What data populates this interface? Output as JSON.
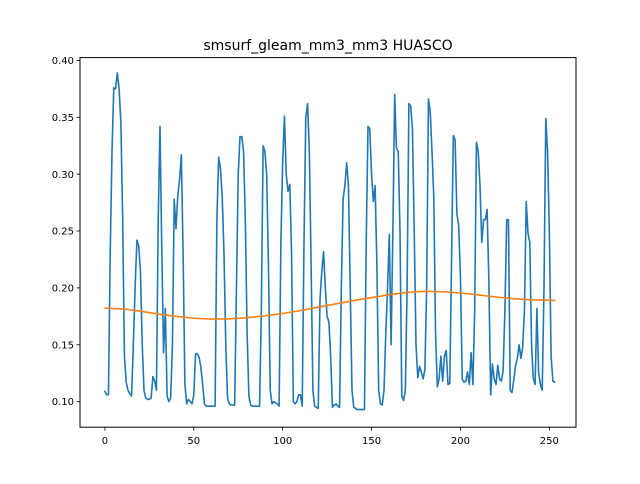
{
  "chart_data": {
    "type": "line",
    "title": "smsurf_gleam_mm3_mm3 HUASCO",
    "xlabel": "",
    "ylabel": "",
    "xlim": [
      -14,
      265
    ],
    "ylim": [
      0.0775,
      0.4025
    ],
    "x_ticks": [
      0,
      50,
      100,
      150,
      200,
      250
    ],
    "x_tick_labels": [
      "0",
      "50",
      "100",
      "150",
      "200",
      "250"
    ],
    "y_ticks": [
      0.1,
      0.15,
      0.2,
      0.25,
      0.3,
      0.35,
      0.4
    ],
    "y_tick_labels": [
      "0.10",
      "0.15",
      "0.20",
      "0.25",
      "0.30",
      "0.35",
      "0.40"
    ],
    "grid": false,
    "series": [
      {
        "color": "#1f77b4",
        "points": [
          [
            0,
            0.109
          ],
          [
            1,
            0.106
          ],
          [
            2,
            0.106
          ],
          [
            3,
            0.23
          ],
          [
            4,
            0.32
          ],
          [
            5,
            0.376
          ],
          [
            6,
            0.375
          ],
          [
            7,
            0.389
          ],
          [
            8,
            0.375
          ],
          [
            9,
            0.345
          ],
          [
            10,
            0.26
          ],
          [
            11,
            0.14
          ],
          [
            12,
            0.117
          ],
          [
            13,
            0.11
          ],
          [
            14,
            0.107
          ],
          [
            15,
            0.105
          ],
          [
            16,
            0.15
          ],
          [
            17,
            0.2
          ],
          [
            18,
            0.242
          ],
          [
            19,
            0.237
          ],
          [
            20,
            0.215
          ],
          [
            21,
            0.15
          ],
          [
            22,
            0.11
          ],
          [
            23,
            0.103
          ],
          [
            24,
            0.102
          ],
          [
            25,
            0.102
          ],
          [
            26,
            0.103
          ],
          [
            27,
            0.122
          ],
          [
            28,
            0.118
          ],
          [
            29,
            0.11
          ],
          [
            30,
            0.26
          ],
          [
            31,
            0.342
          ],
          [
            32,
            0.233
          ],
          [
            33,
            0.143
          ],
          [
            34,
            0.182
          ],
          [
            35,
            0.105
          ],
          [
            36,
            0.1
          ],
          [
            37,
            0.103
          ],
          [
            38,
            0.15
          ],
          [
            39,
            0.278
          ],
          [
            40,
            0.252
          ],
          [
            41,
            0.281
          ],
          [
            42,
            0.295
          ],
          [
            43,
            0.317
          ],
          [
            44,
            0.23
          ],
          [
            45,
            0.115
          ],
          [
            46,
            0.098
          ],
          [
            47,
            0.102
          ],
          [
            48,
            0.1
          ],
          [
            49,
            0.098
          ],
          [
            50,
            0.106
          ],
          [
            51,
            0.142
          ],
          [
            52,
            0.142
          ],
          [
            53,
            0.139
          ],
          [
            54,
            0.13
          ],
          [
            55,
            0.115
          ],
          [
            56,
            0.098
          ],
          [
            57,
            0.096
          ],
          [
            58,
            0.096
          ],
          [
            59,
            0.096
          ],
          [
            60,
            0.096
          ],
          [
            61,
            0.096
          ],
          [
            62,
            0.096
          ],
          [
            63,
            0.26
          ],
          [
            64,
            0.315
          ],
          [
            65,
            0.305
          ],
          [
            66,
            0.28
          ],
          [
            67,
            0.23
          ],
          [
            68,
            0.15
          ],
          [
            69,
            0.103
          ],
          [
            70,
            0.098
          ],
          [
            71,
            0.097
          ],
          [
            72,
            0.097
          ],
          [
            73,
            0.097
          ],
          [
            74,
            0.2
          ],
          [
            75,
            0.3
          ],
          [
            76,
            0.333
          ],
          [
            77,
            0.333
          ],
          [
            78,
            0.32
          ],
          [
            79,
            0.26
          ],
          [
            80,
            0.16
          ],
          [
            81,
            0.105
          ],
          [
            82,
            0.097
          ],
          [
            83,
            0.096
          ],
          [
            84,
            0.096
          ],
          [
            85,
            0.096
          ],
          [
            86,
            0.096
          ],
          [
            87,
            0.096
          ],
          [
            88,
            0.18
          ],
          [
            89,
            0.325
          ],
          [
            90,
            0.32
          ],
          [
            91,
            0.3
          ],
          [
            92,
            0.22
          ],
          [
            93,
            0.11
          ],
          [
            94,
            0.098
          ],
          [
            95,
            0.1
          ],
          [
            96,
            0.099
          ],
          [
            97,
            0.098
          ],
          [
            98,
            0.096
          ],
          [
            99,
            0.24
          ],
          [
            100,
            0.31
          ],
          [
            101,
            0.351
          ],
          [
            102,
            0.3
          ],
          [
            103,
            0.285
          ],
          [
            104,
            0.291
          ],
          [
            105,
            0.23
          ],
          [
            106,
            0.1
          ],
          [
            107,
            0.098
          ],
          [
            108,
            0.1
          ],
          [
            109,
            0.106
          ],
          [
            110,
            0.106
          ],
          [
            111,
            0.096
          ],
          [
            112,
            0.24
          ],
          [
            113,
            0.35
          ],
          [
            114,
            0.362
          ],
          [
            115,
            0.32
          ],
          [
            116,
            0.22
          ],
          [
            117,
            0.11
          ],
          [
            118,
            0.096
          ],
          [
            119,
            0.095
          ],
          [
            120,
            0.094
          ],
          [
            121,
            0.19
          ],
          [
            122,
            0.214
          ],
          [
            123,
            0.232
          ],
          [
            124,
            0.2
          ],
          [
            125,
            0.175
          ],
          [
            126,
            0.17
          ],
          [
            127,
            0.14
          ],
          [
            128,
            0.095
          ],
          [
            129,
            0.097
          ],
          [
            130,
            0.098
          ],
          [
            131,
            0.096
          ],
          [
            132,
            0.095
          ],
          [
            133,
            0.2
          ],
          [
            134,
            0.278
          ],
          [
            135,
            0.29
          ],
          [
            136,
            0.31
          ],
          [
            137,
            0.29
          ],
          [
            138,
            0.2
          ],
          [
            139,
            0.11
          ],
          [
            140,
            0.095
          ],
          [
            141,
            0.094
          ],
          [
            142,
            0.093
          ],
          [
            143,
            0.093
          ],
          [
            144,
            0.093
          ],
          [
            145,
            0.093
          ],
          [
            146,
            0.093
          ],
          [
            147,
            0.24
          ],
          [
            148,
            0.342
          ],
          [
            149,
            0.34
          ],
          [
            150,
            0.3
          ],
          [
            151,
            0.276
          ],
          [
            152,
            0.29
          ],
          [
            153,
            0.22
          ],
          [
            154,
            0.11
          ],
          [
            155,
            0.098
          ],
          [
            156,
            0.097
          ],
          [
            157,
            0.11
          ],
          [
            158,
            0.16
          ],
          [
            159,
            0.2
          ],
          [
            160,
            0.247
          ],
          [
            161,
            0.15
          ],
          [
            162,
            0.25
          ],
          [
            163,
            0.37
          ],
          [
            164,
            0.323
          ],
          [
            165,
            0.32
          ],
          [
            166,
            0.25
          ],
          [
            167,
            0.105
          ],
          [
            168,
            0.101
          ],
          [
            169,
            0.11
          ],
          [
            170,
            0.2
          ],
          [
            171,
            0.362
          ],
          [
            172,
            0.36
          ],
          [
            173,
            0.34
          ],
          [
            174,
            0.25
          ],
          [
            175,
            0.15
          ],
          [
            176,
            0.121
          ],
          [
            177,
            0.131
          ],
          [
            178,
            0.126
          ],
          [
            179,
            0.12
          ],
          [
            180,
            0.128
          ],
          [
            181,
            0.2
          ],
          [
            182,
            0.366
          ],
          [
            183,
            0.355
          ],
          [
            184,
            0.32
          ],
          [
            185,
            0.28
          ],
          [
            186,
            0.16
          ],
          [
            187,
            0.113
          ],
          [
            188,
            0.12
          ],
          [
            189,
            0.14
          ],
          [
            190,
            0.118
          ],
          [
            191,
            0.14
          ],
          [
            192,
            0.145
          ],
          [
            193,
            0.115
          ],
          [
            194,
            0.116
          ],
          [
            195,
            0.225
          ],
          [
            196,
            0.334
          ],
          [
            197,
            0.33
          ],
          [
            198,
            0.265
          ],
          [
            199,
            0.255
          ],
          [
            200,
            0.21
          ],
          [
            201,
            0.12
          ],
          [
            202,
            0.117
          ],
          [
            203,
            0.118
          ],
          [
            204,
            0.126
          ],
          [
            205,
            0.115
          ],
          [
            206,
            0.143
          ],
          [
            207,
            0.115
          ],
          [
            208,
            0.18
          ],
          [
            209,
            0.328
          ],
          [
            210,
            0.32
          ],
          [
            211,
            0.29
          ],
          [
            212,
            0.24
          ],
          [
            213,
            0.26
          ],
          [
            214,
            0.26
          ],
          [
            215,
            0.269
          ],
          [
            216,
            0.205
          ],
          [
            217,
            0.106
          ],
          [
            218,
            0.133
          ],
          [
            219,
            0.12
          ],
          [
            220,
            0.115
          ],
          [
            221,
            0.132
          ],
          [
            222,
            0.12
          ],
          [
            223,
            0.118
          ],
          [
            224,
            0.127
          ],
          [
            225,
            0.18
          ],
          [
            226,
            0.26
          ],
          [
            227,
            0.26
          ],
          [
            228,
            0.11
          ],
          [
            229,
            0.108
          ],
          [
            230,
            0.119
          ],
          [
            231,
            0.132
          ],
          [
            232,
            0.138
          ],
          [
            233,
            0.15
          ],
          [
            234,
            0.138
          ],
          [
            235,
            0.148
          ],
          [
            236,
            0.18
          ],
          [
            237,
            0.276
          ],
          [
            238,
            0.248
          ],
          [
            239,
            0.24
          ],
          [
            240,
            0.15
          ],
          [
            241,
            0.12
          ],
          [
            242,
            0.115
          ],
          [
            243,
            0.182
          ],
          [
            244,
            0.125
          ],
          [
            245,
            0.115
          ],
          [
            246,
            0.11
          ],
          [
            247,
            0.2
          ],
          [
            248,
            0.349
          ],
          [
            249,
            0.32
          ],
          [
            250,
            0.25
          ],
          [
            251,
            0.14
          ],
          [
            252,
            0.118
          ],
          [
            253,
            0.117
          ]
        ]
      },
      {
        "color": "#ff7f0e",
        "points": [
          [
            0,
            0.1822
          ],
          [
            10,
            0.1815
          ],
          [
            20,
            0.1795
          ],
          [
            30,
            0.177
          ],
          [
            40,
            0.175
          ],
          [
            50,
            0.1733
          ],
          [
            60,
            0.1726
          ],
          [
            70,
            0.1728
          ],
          [
            80,
            0.1738
          ],
          [
            90,
            0.1754
          ],
          [
            100,
            0.1775
          ],
          [
            110,
            0.18
          ],
          [
            120,
            0.183
          ],
          [
            130,
            0.186
          ],
          [
            140,
            0.1888
          ],
          [
            150,
            0.1915
          ],
          [
            160,
            0.194
          ],
          [
            170,
            0.196
          ],
          [
            180,
            0.197
          ],
          [
            190,
            0.1966
          ],
          [
            200,
            0.1955
          ],
          [
            210,
            0.1938
          ],
          [
            220,
            0.192
          ],
          [
            230,
            0.1905
          ],
          [
            240,
            0.1895
          ],
          [
            250,
            0.1892
          ],
          [
            253,
            0.189
          ]
        ]
      }
    ]
  }
}
